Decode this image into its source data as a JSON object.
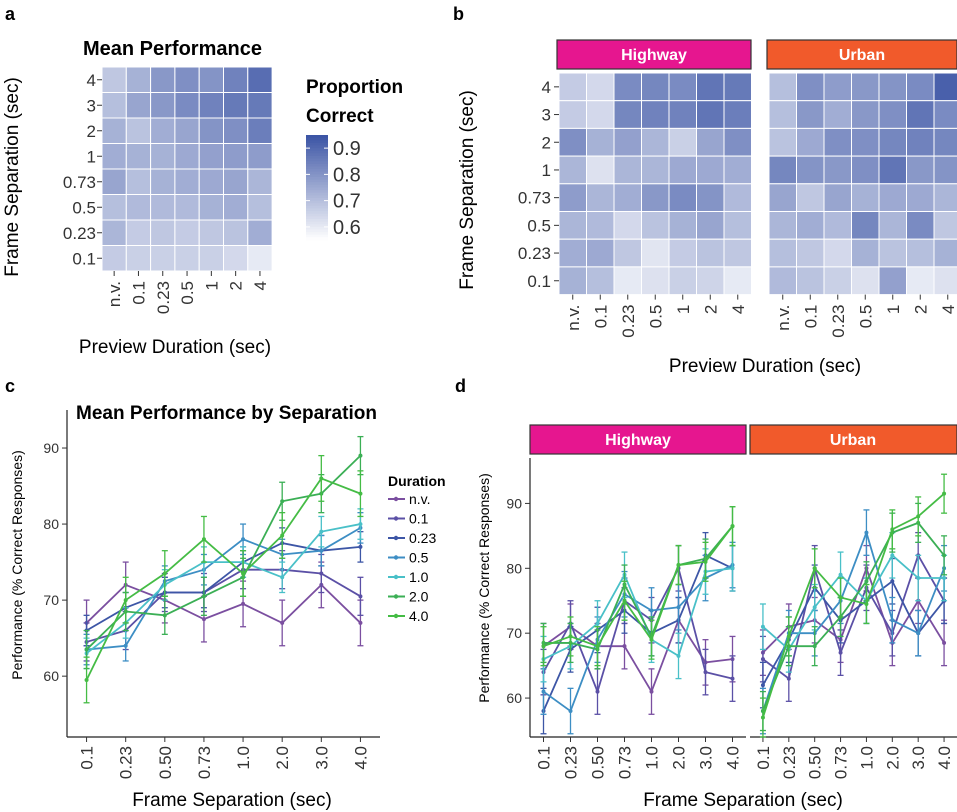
{
  "panels": {
    "a": {
      "label": "a",
      "title": "Mean Performance",
      "ylabel": "Frame Separation (sec)",
      "xlabel": "Preview Duration (sec)"
    },
    "b": {
      "label": "b",
      "ylabel": "Frame Separation (sec)",
      "xlabel": "Preview Duration (sec)",
      "facet_highway": "Highway",
      "facet_urban": "Urban"
    },
    "c": {
      "label": "c",
      "title": "Mean Performance by Separation",
      "ylabel": "Performance (% Correct Responses)",
      "xlabel": "Frame Separation (sec)"
    },
    "d": {
      "label": "d",
      "ylabel": "Performance (% Correct Responses)",
      "xlabel": "Frame Separation (sec)",
      "facet_highway": "Highway",
      "facet_urban": "Urban"
    }
  },
  "colorbar": {
    "title_line1": "Proportion",
    "title_line2": "Correct",
    "ticks": [
      "0.9",
      "0.8",
      "0.7",
      "0.6"
    ]
  },
  "legend": {
    "title": "Duration",
    "labels": [
      "n.v.",
      "0.1",
      "0.23",
      "0.5",
      "1.0",
      "2.0",
      "4.0"
    ]
  },
  "colors": {
    "series": [
      "#7B4FA0",
      "#5B50A6",
      "#3D56A6",
      "#3D8EC4",
      "#49C0C8",
      "#3BAF55",
      "#45BC45"
    ],
    "heat_low": "#ffffff",
    "heat_high": "#3A53A4",
    "highway_strip": "#E6168F",
    "urban_strip": "#F15A2B"
  },
  "chart_data": [
    {
      "type": "heatmap",
      "panel": "a",
      "title": "Mean Performance",
      "x_categories": [
        "n.v.",
        "0.1",
        "0.23",
        "0.5",
        "1",
        "2",
        "4"
      ],
      "y_categories": [
        "4",
        "3",
        "2",
        "1",
        "0.73",
        "0.5",
        "0.23",
        "0.1"
      ],
      "values": [
        [
          0.68,
          0.73,
          0.79,
          0.81,
          0.8,
          0.84,
          0.89
        ],
        [
          0.7,
          0.76,
          0.79,
          0.82,
          0.84,
          0.86,
          0.86
        ],
        [
          0.73,
          0.69,
          0.74,
          0.76,
          0.8,
          0.81,
          0.85
        ],
        [
          0.74,
          0.73,
          0.73,
          0.75,
          0.77,
          0.78,
          0.78
        ],
        [
          0.76,
          0.7,
          0.73,
          0.74,
          0.75,
          0.76,
          0.72
        ],
        [
          0.7,
          0.71,
          0.71,
          0.71,
          0.73,
          0.74,
          0.7
        ],
        [
          0.72,
          0.67,
          0.68,
          0.67,
          0.68,
          0.69,
          0.74
        ],
        [
          0.67,
          0.66,
          0.66,
          0.66,
          0.66,
          0.64,
          0.6
        ]
      ],
      "colorbar_range": [
        0.55,
        0.95
      ]
    },
    {
      "type": "heatmap",
      "panel": "b",
      "facet": "Highway",
      "x_categories": [
        "n.v.",
        "0.1",
        "0.23",
        "0.5",
        "1",
        "2",
        "4"
      ],
      "y_categories": [
        "4",
        "3",
        "2",
        "1",
        "0.73",
        "0.5",
        "0.23",
        "0.1"
      ],
      "values": [
        [
          0.67,
          0.64,
          0.82,
          0.83,
          0.82,
          0.87,
          0.86
        ],
        [
          0.67,
          0.64,
          0.83,
          0.84,
          0.84,
          0.87,
          0.85
        ],
        [
          0.81,
          0.73,
          0.77,
          0.72,
          0.66,
          0.76,
          0.81
        ],
        [
          0.72,
          0.62,
          0.72,
          0.72,
          0.75,
          0.75,
          0.74
        ],
        [
          0.78,
          0.72,
          0.74,
          0.79,
          0.82,
          0.8,
          0.71
        ],
        [
          0.72,
          0.71,
          0.64,
          0.69,
          0.73,
          0.76,
          0.7
        ],
        [
          0.74,
          0.75,
          0.68,
          0.61,
          0.67,
          0.69,
          0.68
        ],
        [
          0.73,
          0.7,
          0.6,
          0.62,
          0.66,
          0.65,
          0.6
        ]
      ]
    },
    {
      "type": "heatmap",
      "panel": "b",
      "facet": "Urban",
      "x_categories": [
        "n.v.",
        "0.1",
        "0.23",
        "0.5",
        "1",
        "2",
        "4"
      ],
      "y_categories": [
        "4",
        "3",
        "2",
        "1",
        "0.73",
        "0.5",
        "0.23",
        "0.1"
      ],
      "values": [
        [
          0.7,
          0.81,
          0.78,
          0.79,
          0.8,
          0.82,
          0.92
        ],
        [
          0.7,
          0.79,
          0.74,
          0.79,
          0.81,
          0.87,
          0.82
        ],
        [
          0.69,
          0.75,
          0.81,
          0.81,
          0.83,
          0.84,
          0.83
        ],
        [
          0.83,
          0.8,
          0.79,
          0.81,
          0.87,
          0.79,
          0.8
        ],
        [
          0.76,
          0.68,
          0.76,
          0.73,
          0.75,
          0.75,
          0.72
        ],
        [
          0.72,
          0.74,
          0.71,
          0.83,
          0.72,
          0.82,
          0.68
        ],
        [
          0.7,
          0.68,
          0.64,
          0.73,
          0.69,
          0.7,
          0.73
        ],
        [
          0.71,
          0.69,
          0.66,
          0.62,
          0.77,
          0.6,
          0.62
        ]
      ]
    },
    {
      "type": "line",
      "panel": "c",
      "title": "Mean Performance by Separation",
      "x": [
        "0.1",
        "0.23",
        "0.50",
        "0.73",
        "1.0",
        "2.0",
        "3.0",
        "4.0"
      ],
      "ylim": [
        52,
        95
      ],
      "yticks": [
        60,
        70,
        80,
        90
      ],
      "series": [
        {
          "name": "n.v.",
          "values": [
            67.0,
            72.0,
            70.0,
            67.5,
            69.5,
            67.0,
            72.0,
            67.0
          ],
          "err": 3.0
        },
        {
          "name": "0.1",
          "values": [
            64.5,
            66.0,
            71.0,
            71.0,
            74.0,
            74.0,
            73.5,
            70.5
          ],
          "err": 2.5
        },
        {
          "name": "0.23",
          "values": [
            66.0,
            69.0,
            71.0,
            71.0,
            75.0,
            77.5,
            76.5,
            77.0
          ],
          "err": 2.0
        },
        {
          "name": "0.5",
          "values": [
            63.5,
            64.0,
            72.5,
            74.0,
            78.0,
            76.0,
            76.5,
            79.5
          ],
          "err": 2.0
        },
        {
          "name": "1.0",
          "values": [
            63.0,
            67.0,
            72.0,
            75.0,
            75.0,
            73.0,
            79.0,
            80.0
          ],
          "err": 2.0
        },
        {
          "name": "2.0",
          "values": [
            63.5,
            68.5,
            68.0,
            70.5,
            73.0,
            83.0,
            84.0,
            89.0
          ],
          "err": 2.5
        },
        {
          "name": "4.0",
          "values": [
            59.5,
            70.0,
            73.5,
            78.0,
            73.5,
            78.5,
            86.0,
            84.0
          ],
          "err": 3.0
        }
      ]
    },
    {
      "type": "line",
      "panel": "d",
      "facet": "Highway",
      "x": [
        "0.1",
        "0.23",
        "0.50",
        "0.73",
        "1.0",
        "2.0",
        "3.0",
        "4.0"
      ],
      "ylim": [
        54,
        97
      ],
      "yticks": [
        60,
        70,
        80,
        90
      ],
      "series": [
        {
          "name": "n.v.",
          "values": [
            68.0,
            71.0,
            68.0,
            68.0,
            61.0,
            72.0,
            65.5,
            66.0
          ],
          "err": 3.5
        },
        {
          "name": "0.1",
          "values": [
            64.0,
            71.5,
            61.0,
            75.0,
            72.0,
            80.0,
            64.0,
            63.0
          ],
          "err": 3.5
        },
        {
          "name": "0.23",
          "values": [
            58.0,
            67.5,
            70.5,
            73.5,
            70.0,
            72.0,
            82.0,
            80.0
          ],
          "err": 3.5
        },
        {
          "name": "0.5",
          "values": [
            61.0,
            58.0,
            69.0,
            76.0,
            73.5,
            74.0,
            78.5,
            80.5
          ],
          "err": 3.5
        },
        {
          "name": "1.0",
          "values": [
            66.0,
            68.0,
            71.5,
            79.0,
            69.0,
            66.5,
            79.5,
            80.0
          ],
          "err": 3.5
        },
        {
          "name": "2.0",
          "values": [
            68.5,
            68.5,
            67.5,
            77.5,
            69.5,
            80.5,
            81.5,
            86.5
          ],
          "err": 3.0
        },
        {
          "name": "4.0",
          "values": [
            68.0,
            69.5,
            68.0,
            75.0,
            69.0,
            80.5,
            81.0,
            86.5
          ],
          "err": 3.0
        }
      ]
    },
    {
      "type": "line",
      "panel": "d",
      "facet": "Urban",
      "x": [
        "0.1",
        "0.23",
        "0.50",
        "0.73",
        "1.0",
        "2.0",
        "3.0",
        "4.0"
      ],
      "ylim": [
        54,
        97
      ],
      "yticks": [
        60,
        70,
        80,
        90
      ],
      "series": [
        {
          "name": "n.v.",
          "values": [
            67.0,
            71.0,
            72.0,
            69.0,
            80.0,
            68.5,
            75.0,
            68.5
          ],
          "err": 3.5
        },
        {
          "name": "0.1",
          "values": [
            66.0,
            63.0,
            80.0,
            67.0,
            77.0,
            70.0,
            82.0,
            75.0
          ],
          "err": 3.5
        },
        {
          "name": "0.23",
          "values": [
            62.0,
            69.0,
            77.0,
            72.0,
            75.0,
            78.0,
            70.0,
            75.0
          ],
          "err": 3.5
        },
        {
          "name": "0.5",
          "values": [
            58.0,
            70.0,
            70.0,
            75.0,
            85.5,
            72.0,
            70.0,
            80.0
          ],
          "err": 3.5
        },
        {
          "name": "1.0",
          "values": [
            71.0,
            67.5,
            74.0,
            79.0,
            75.0,
            82.0,
            78.5,
            78.5
          ],
          "err": 3.5
        },
        {
          "name": "2.0",
          "values": [
            58.0,
            68.0,
            68.0,
            72.5,
            78.0,
            85.5,
            87.0,
            82.0
          ],
          "err": 3.0
        },
        {
          "name": "4.0",
          "values": [
            57.0,
            69.5,
            80.0,
            75.5,
            74.5,
            86.0,
            88.0,
            91.5
          ],
          "err": 3.0
        }
      ]
    }
  ]
}
